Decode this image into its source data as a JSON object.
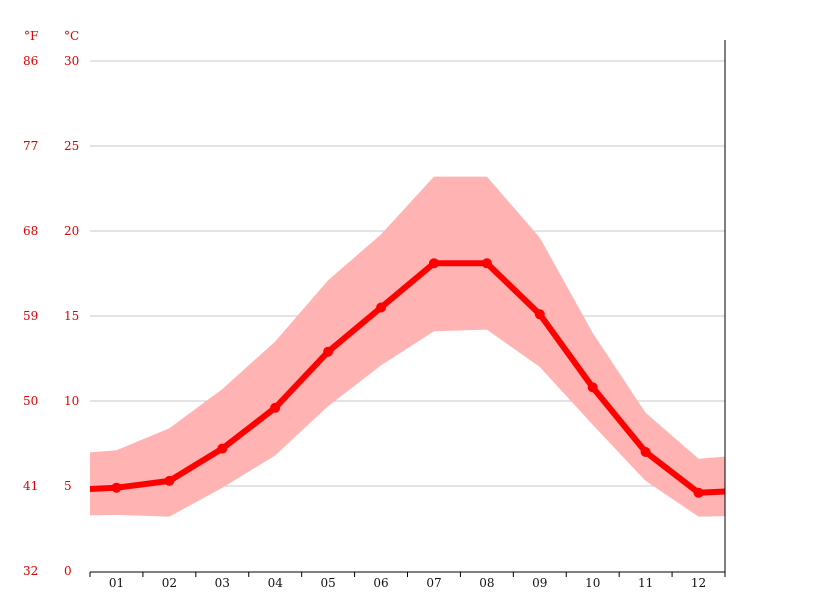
{
  "chart_data": {
    "type": "line",
    "categories": [
      "01",
      "02",
      "03",
      "04",
      "05",
      "06",
      "07",
      "08",
      "09",
      "10",
      "11",
      "12"
    ],
    "units": {
      "left": "°F",
      "right": "°C"
    },
    "y_ticks_c": [
      0,
      5,
      10,
      15,
      20,
      25,
      30
    ],
    "y_ticks_f": [
      32,
      41,
      50,
      59,
      68,
      77,
      86
    ],
    "ylim": [
      0,
      31
    ],
    "grid": true,
    "series": [
      {
        "role": "mean",
        "values": [
          4.9,
          5.3,
          7.2,
          9.6,
          12.9,
          15.5,
          18.1,
          18.1,
          15.1,
          10.8,
          7.0,
          4.6
        ]
      },
      {
        "role": "max",
        "values": [
          7.1,
          8.4,
          10.7,
          13.5,
          17.1,
          19.8,
          23.2,
          23.2,
          19.6,
          14.0,
          9.3,
          6.6
        ]
      },
      {
        "role": "min",
        "values": [
          3.3,
          3.2,
          4.9,
          6.8,
          9.7,
          12.1,
          14.1,
          14.2,
          12.0,
          8.6,
          5.3,
          3.2
        ]
      }
    ],
    "colors": {
      "mean": "#ff0000",
      "band": "#ffb3b3",
      "axis": "#000000",
      "grid": "#c8c8c8"
    }
  }
}
